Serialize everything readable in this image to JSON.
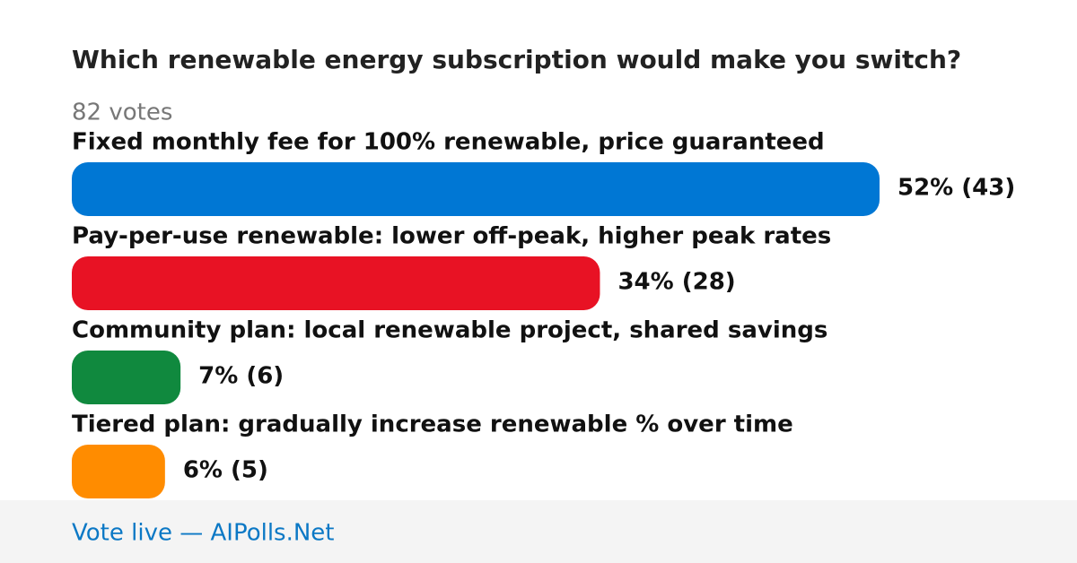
{
  "chart_data": {
    "type": "bar",
    "title": "Which renewable energy subscription would make you switch?",
    "subtitle": "82 votes",
    "categories": [
      "Fixed monthly fee for 100% renewable, price guaranteed",
      "Pay-per-use renewable: lower off-peak, higher peak rates",
      "Community plan: local renewable project, shared savings",
      "Tiered plan: gradually increase renewable % over time"
    ],
    "values": [
      52,
      34,
      7,
      6
    ],
    "value_labels": [
      "52% (43)",
      "34% (28)",
      "7% (6)",
      "6% (5)"
    ],
    "colors": [
      "#0077d4",
      "#e81224",
      "#10893e",
      "#ff8c00"
    ]
  },
  "footer": "Vote live — AIPolls.Net"
}
